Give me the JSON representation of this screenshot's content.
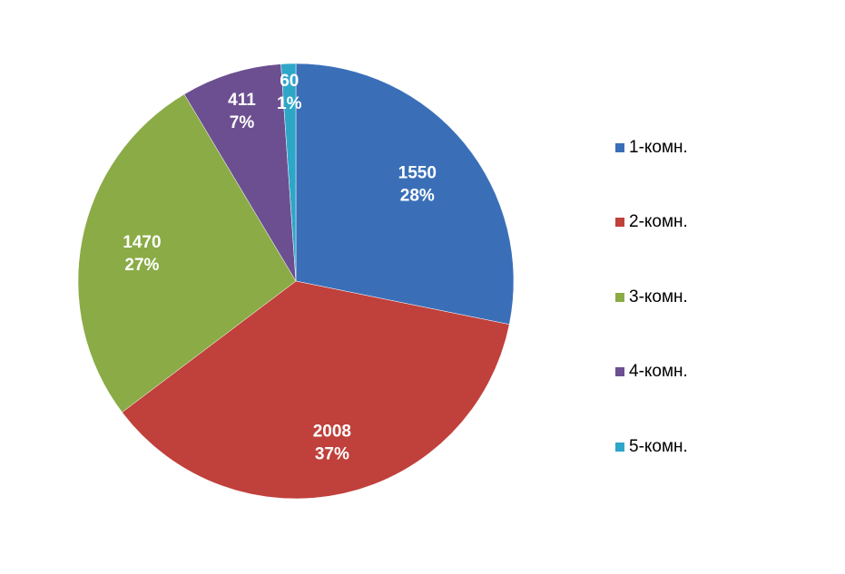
{
  "chart_data": {
    "type": "pie",
    "title": "",
    "categories": [
      "1-комн.",
      "2-комн.",
      "3-комн.",
      "4-комн.",
      "5-комн."
    ],
    "values": [
      1550,
      2008,
      1470,
      411,
      60
    ],
    "percent_labels": [
      "28%",
      "37%",
      "27%",
      "7%",
      "1%"
    ],
    "value_labels": [
      "1550",
      "2008",
      "1470",
      "411",
      "60"
    ],
    "colors": [
      "#3a6fb8",
      "#c0403b",
      "#8aab46",
      "#6c4f90",
      "#2ea6c8"
    ],
    "legend_position": "right",
    "start_angle": "12 o'clock",
    "direction": "clockwise"
  },
  "legend": {
    "items": [
      {
        "label": "1-комн.",
        "color": "#3a6fb8"
      },
      {
        "label": "2-комн.",
        "color": "#c0403b"
      },
      {
        "label": "3-комн.",
        "color": "#8aab46"
      },
      {
        "label": "4-комн.",
        "color": "#6c4f90"
      },
      {
        "label": "5-комн.",
        "color": "#2ea6c8"
      }
    ]
  }
}
